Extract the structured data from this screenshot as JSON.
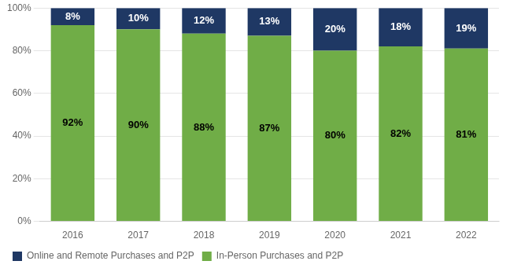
{
  "chart_data": {
    "type": "bar",
    "categories": [
      "2016",
      "2017",
      "2018",
      "2019",
      "2020",
      "2021",
      "2022"
    ],
    "series": [
      {
        "name": "In-Person Purchases and P2P",
        "color": "#70ad47",
        "values": [
          92,
          90,
          88,
          87,
          80,
          82,
          81
        ],
        "value_labels": [
          "92%",
          "90%",
          "88%",
          "87%",
          "80%",
          "82%",
          "81%"
        ]
      },
      {
        "name": "Online and Remote Purchases and P2P",
        "color": "#1f3864",
        "values": [
          8,
          10,
          12,
          13,
          20,
          18,
          19
        ],
        "value_labels": [
          "8%",
          "10%",
          "12%",
          "13%",
          "20%",
          "18%",
          "19%"
        ]
      }
    ],
    "stacked": true,
    "ylim": [
      0,
      100
    ],
    "yticks": [
      {
        "value": 0,
        "label": "0%"
      },
      {
        "value": 20,
        "label": "20%"
      },
      {
        "value": 40,
        "label": "40%"
      },
      {
        "value": 60,
        "label": "60%"
      },
      {
        "value": 80,
        "label": "80%"
      },
      {
        "value": 100,
        "label": "100%"
      }
    ],
    "grid": true,
    "legend": "bottom",
    "data_labels": true
  }
}
